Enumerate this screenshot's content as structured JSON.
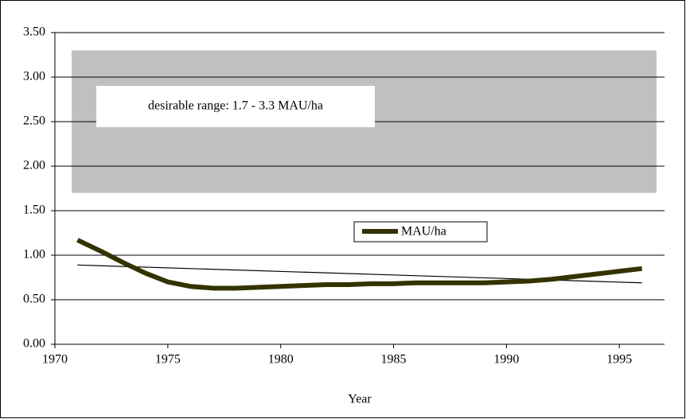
{
  "chart_data": {
    "type": "line",
    "x": [
      1971,
      1972,
      1973,
      1974,
      1975,
      1976,
      1977,
      1978,
      1979,
      1980,
      1981,
      1982,
      1983,
      1984,
      1985,
      1986,
      1987,
      1988,
      1989,
      1990,
      1991,
      1992,
      1993,
      1994,
      1995,
      1996
    ],
    "series": [
      {
        "name": "MAU/ha",
        "color": "#333300",
        "values": [
          1.17,
          1.05,
          0.92,
          0.8,
          0.7,
          0.65,
          0.63,
          0.63,
          0.64,
          0.65,
          0.66,
          0.67,
          0.67,
          0.68,
          0.68,
          0.69,
          0.69,
          0.69,
          0.69,
          0.7,
          0.71,
          0.73,
          0.76,
          0.79,
          0.82,
          0.85
        ]
      }
    ],
    "trendline": {
      "x": [
        1971,
        1996
      ],
      "values": [
        0.89,
        0.69
      ],
      "color": "#000000"
    },
    "band": {
      "range": [
        1.7,
        3.3
      ],
      "color": "#c0c0c0",
      "annotation": "desirable range:  1.7 - 3.3 MAU/ha"
    },
    "xlabel": "Year",
    "xlim": [
      1970,
      1997
    ],
    "xticks": [
      1970,
      1975,
      1980,
      1985,
      1990,
      1995
    ],
    "ylim": [
      0,
      3.5
    ],
    "yticks": [
      {
        "value": 0,
        "label": "0.00"
      },
      {
        "value": 0.5,
        "label": "0.50"
      },
      {
        "value": 1,
        "label": "1.00"
      },
      {
        "value": 1.5,
        "label": "1.50"
      },
      {
        "value": 2,
        "label": "2.00"
      },
      {
        "value": 2.5,
        "label": "2.50"
      },
      {
        "value": 3,
        "label": "3.00"
      },
      {
        "value": 3.5,
        "label": "3.50"
      }
    ],
    "grid": true
  }
}
